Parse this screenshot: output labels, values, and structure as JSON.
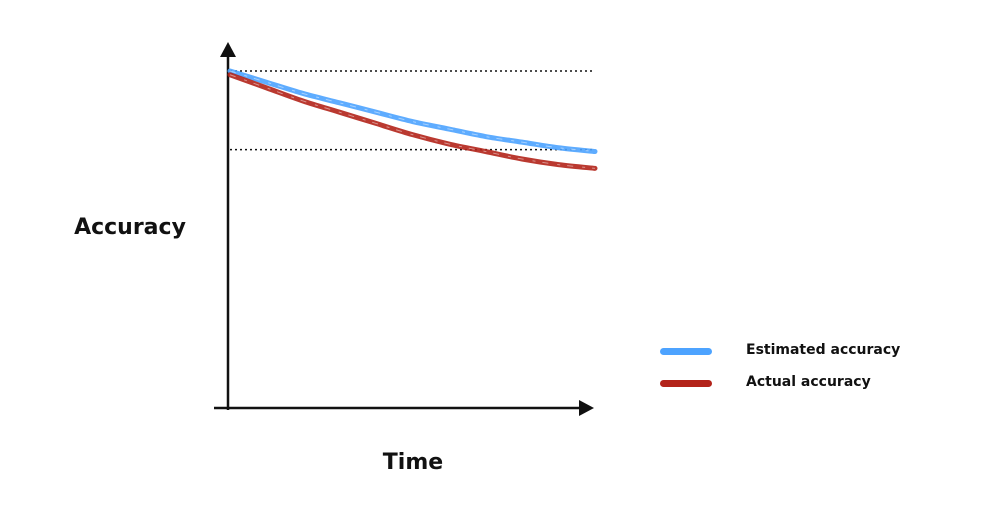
{
  "chart_data": {
    "type": "line",
    "title": "",
    "xlabel": "Time",
    "ylabel": "Accuracy",
    "xlim": [
      0,
      1
    ],
    "ylim": [
      0,
      1
    ],
    "grid": false,
    "legend_position": "bottom-right",
    "reference_lines": [
      {
        "y": 0.9
      },
      {
        "y": 0.69
      }
    ],
    "x": [
      0,
      0.1,
      0.2,
      0.3,
      0.4,
      0.5,
      0.6,
      0.7,
      0.8,
      0.9,
      1.0
    ],
    "series": [
      {
        "name": "Estimated accuracy",
        "color": "#4da3ff",
        "values": [
          0.9,
          0.87,
          0.84,
          0.815,
          0.79,
          0.765,
          0.745,
          0.725,
          0.71,
          0.695,
          0.685
        ]
      },
      {
        "name": "Actual accuracy",
        "color": "#b3231a",
        "values": [
          0.89,
          0.855,
          0.82,
          0.79,
          0.76,
          0.73,
          0.705,
          0.685,
          0.665,
          0.65,
          0.64
        ]
      }
    ]
  }
}
